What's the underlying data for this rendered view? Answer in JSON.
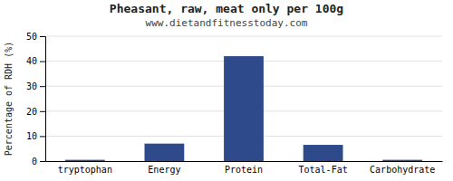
{
  "chart_data": {
    "type": "bar",
    "title": "Pheasant, raw, meat only per 100g",
    "subtitle": "www.dietandfitnesstoday.com",
    "categories": [
      "tryptophan",
      "Energy",
      "Protein",
      "Total-Fat",
      "Carbohydrate"
    ],
    "values": [
      0.5,
      7.0,
      42.0,
      6.5,
      0.5
    ],
    "color": "#2e4a8a",
    "ylabel": "Percentage of RDH (%)",
    "ylim": [
      0,
      50
    ],
    "yticks": [
      0,
      10,
      20,
      30,
      40,
      50
    ],
    "grid": true
  }
}
